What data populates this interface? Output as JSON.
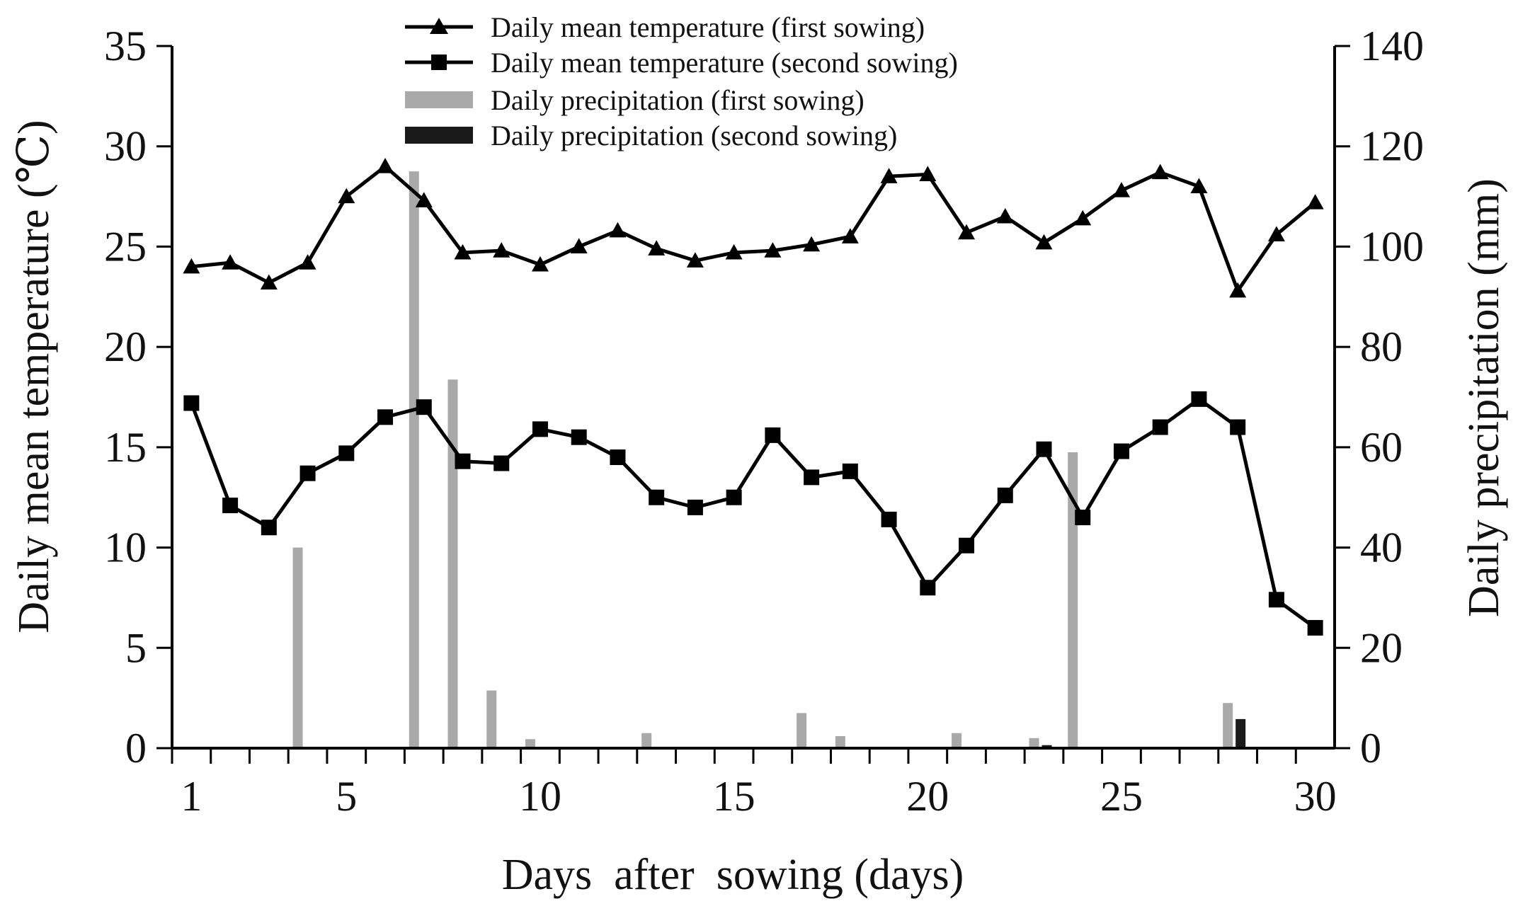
{
  "chart_data": {
    "type": "line+bar",
    "title": "",
    "xlabel": "Days  after  sowing (days)",
    "ylabel_left": "Daily mean temperature (℃)",
    "ylabel_right": "Daily precipitation (mm)",
    "xlim": [
      0.5,
      30.5
    ],
    "ylim_left": [
      0,
      35
    ],
    "ylim_right": [
      0,
      140
    ],
    "x_ticks": [
      1,
      5,
      10,
      15,
      20,
      25,
      30
    ],
    "x_tick_labels": [
      "1",
      "5",
      "10",
      "15",
      "20",
      "25",
      "30"
    ],
    "y_left_ticks": [
      0,
      5,
      10,
      15,
      20,
      25,
      30,
      35
    ],
    "y_left_tick_labels": [
      "0",
      "5",
      "10",
      "15",
      "20",
      "25",
      "30",
      "35"
    ],
    "y_right_ticks": [
      0,
      20,
      40,
      60,
      80,
      100,
      120,
      140
    ],
    "y_right_tick_labels": [
      "0",
      "20",
      "40",
      "60",
      "80",
      "100",
      "120",
      "140"
    ],
    "grid": false,
    "legend_position": "top-center",
    "days": [
      1,
      2,
      3,
      4,
      5,
      6,
      7,
      8,
      9,
      10,
      11,
      12,
      13,
      14,
      15,
      16,
      17,
      18,
      19,
      20,
      21,
      22,
      23,
      24,
      25,
      26,
      27,
      28,
      29,
      30
    ],
    "series": [
      {
        "name": "Daily mean temperature (first sowing)",
        "kind": "line",
        "marker": "triangle",
        "axis": "left",
        "color": "#000000",
        "values": [
          24.0,
          24.2,
          23.2,
          24.2,
          27.5,
          29.0,
          27.3,
          24.7,
          24.8,
          24.1,
          25.0,
          25.8,
          24.9,
          24.3,
          24.7,
          24.8,
          25.1,
          25.5,
          28.5,
          28.6,
          25.7,
          26.5,
          25.2,
          26.4,
          27.8,
          28.7,
          28.0,
          22.8,
          25.6,
          27.2
        ]
      },
      {
        "name": "Daily mean temperature (second sowing)",
        "kind": "line",
        "marker": "square",
        "axis": "left",
        "color": "#000000",
        "values": [
          17.2,
          12.1,
          11.0,
          13.7,
          14.7,
          16.5,
          17.0,
          14.3,
          14.2,
          15.9,
          15.5,
          14.5,
          12.5,
          12.0,
          12.5,
          15.6,
          13.5,
          13.8,
          11.4,
          8.0,
          10.1,
          12.6,
          14.9,
          11.5,
          14.8,
          16.0,
          17.4,
          16.0,
          7.4,
          6.0
        ]
      },
      {
        "name": "Daily precipitation (first sowing)",
        "kind": "bar",
        "axis": "right",
        "color": "#a9a9a9",
        "values": [
          0,
          0,
          0,
          40,
          0,
          0,
          115,
          73.5,
          11.5,
          1.8,
          0,
          0,
          3.0,
          0,
          0,
          0,
          7.0,
          2.4,
          0,
          0,
          3.0,
          0,
          2.0,
          59,
          0,
          0,
          0,
          9.0,
          0,
          0
        ]
      },
      {
        "name": "Daily precipitation (second sowing)",
        "kind": "bar",
        "axis": "right",
        "color": "#1a1a1a",
        "values": [
          0,
          0,
          0,
          0,
          0,
          0,
          0,
          0,
          0,
          0,
          0,
          0,
          0,
          0,
          0,
          0,
          0,
          0,
          0,
          0,
          0,
          0,
          0.6,
          0,
          0,
          0,
          0,
          5.8,
          0,
          0
        ]
      }
    ]
  }
}
